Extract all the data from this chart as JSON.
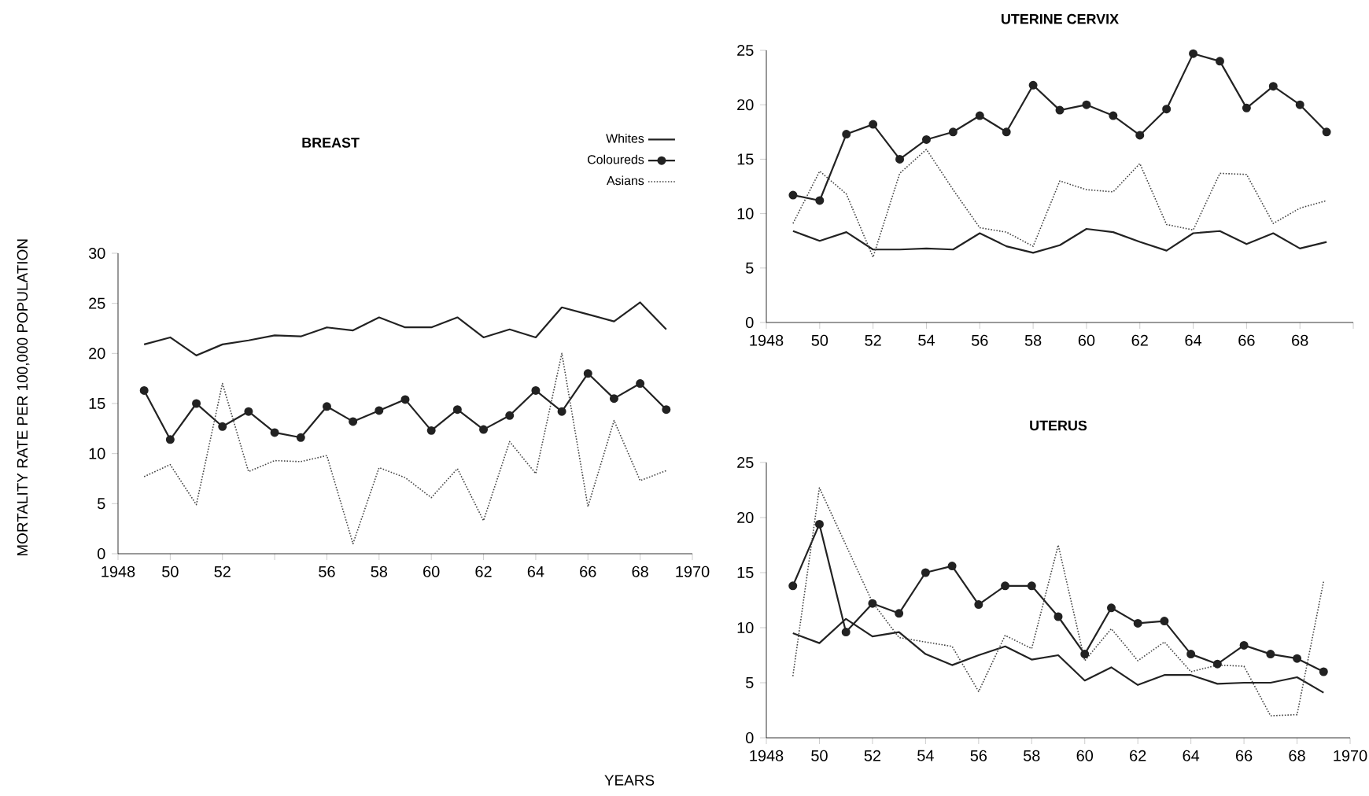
{
  "chart_data": [
    {
      "type": "line",
      "title": "BREAST",
      "ylabel": "MORTALITY RATE PER 100,000 POPULATION",
      "annotations": [
        "YEARS"
      ],
      "x": [
        1949,
        1950,
        1951,
        1952,
        1953,
        1954,
        1955,
        1956,
        1957,
        1958,
        1959,
        1960,
        1961,
        1962,
        1963,
        1964,
        1965,
        1966,
        1967,
        1968,
        1969
      ],
      "series": [
        {
          "name": "Whites",
          "color": "#222222",
          "line_style": "solid",
          "values": [
            20.9,
            21.6,
            19.8,
            20.9,
            21.3,
            21.8,
            21.7,
            22.6,
            22.3,
            23.6,
            22.6,
            22.6,
            23.6,
            21.6,
            22.4,
            21.6,
            24.6,
            23.9,
            23.2,
            25.1,
            22.4
          ]
        },
        {
          "name": "Coloureds",
          "color": "#222222",
          "line_style": "solid",
          "marker": "circle",
          "values": [
            16.3,
            11.4,
            15.0,
            12.7,
            14.2,
            12.1,
            11.6,
            14.7,
            13.2,
            14.3,
            15.4,
            12.3,
            14.4,
            12.4,
            13.8,
            16.3,
            14.2,
            18.0,
            15.5,
            17.0,
            14.4
          ]
        },
        {
          "name": "Asians",
          "color": "#444444",
          "line_style": "dotted",
          "values": [
            7.7,
            8.9,
            4.9,
            17.0,
            8.2,
            9.3,
            9.2,
            9.8,
            1.0,
            8.6,
            7.6,
            5.6,
            8.5,
            3.3,
            11.2,
            8.0,
            20.0,
            4.7,
            13.3,
            7.3,
            8.3
          ]
        }
      ],
      "xlim": [
        1948,
        1970
      ],
      "ylim": [
        0,
        30
      ],
      "xticks": [
        1948,
        {
          "value": 1950,
          "label": "50"
        },
        {
          "value": 1952,
          "label": "52"
        },
        {
          "value": 1954,
          "label": null
        },
        {
          "value": 1956,
          "label": "56"
        },
        {
          "value": 1958,
          "label": "58"
        },
        {
          "value": 1960,
          "label": "60"
        },
        {
          "value": 1962,
          "label": "62"
        },
        {
          "value": 1964,
          "label": "64"
        },
        {
          "value": 1966,
          "label": "66"
        },
        {
          "value": 1968,
          "label": "68"
        },
        1970
      ],
      "yticks": [
        0,
        5,
        10,
        15,
        20,
        25,
        30
      ],
      "legend": "top right"
    },
    {
      "type": "line",
      "title": "UTERINE CERVIX",
      "x": [
        1949,
        1950,
        1951,
        1952,
        1953,
        1954,
        1955,
        1956,
        1957,
        1958,
        1959,
        1960,
        1961,
        1962,
        1963,
        1964,
        1965,
        1966,
        1967,
        1968,
        1969
      ],
      "series": [
        {
          "color": "#222222",
          "line_style": "solid",
          "values": [
            8.4,
            7.5,
            8.3,
            6.7,
            6.7,
            6.8,
            6.7,
            8.2,
            7.0,
            6.4,
            7.1,
            8.6,
            8.3,
            7.4,
            6.6,
            8.2,
            8.4,
            7.2,
            8.2,
            6.8,
            7.4
          ]
        },
        {
          "color": "#222222",
          "line_style": "solid",
          "marker": "circle",
          "values": [
            11.7,
            11.2,
            17.3,
            18.2,
            15.0,
            16.8,
            17.5,
            19.0,
            17.5,
            21.8,
            19.5,
            20.0,
            19.0,
            17.2,
            19.6,
            24.7,
            24.0,
            19.7,
            21.7,
            20.0,
            17.5
          ]
        },
        {
          "color": "#444444",
          "line_style": "dotted",
          "values": [
            9.1,
            13.9,
            11.8,
            6.0,
            13.7,
            15.9,
            12.2,
            8.7,
            8.3,
            7.0,
            13.0,
            12.2,
            12.0,
            14.6,
            9.0,
            8.5,
            13.7,
            13.6,
            9.1,
            10.5,
            11.2
          ]
        }
      ],
      "xlim": [
        1948,
        1970
      ],
      "ylim": [
        0,
        25
      ],
      "xticks": [
        1948,
        {
          "value": 1950,
          "label": "50"
        },
        {
          "value": 1952,
          "label": "52"
        },
        {
          "value": 1954,
          "label": "54"
        },
        {
          "value": 1956,
          "label": "56"
        },
        {
          "value": 1958,
          "label": "58"
        },
        {
          "value": 1960,
          "label": "60"
        },
        {
          "value": 1962,
          "label": "62"
        },
        {
          "value": 1964,
          "label": "64"
        },
        {
          "value": 1966,
          "label": "66"
        },
        {
          "value": 1968,
          "label": "68"
        },
        {
          "value": 1970,
          "label": null
        }
      ],
      "yticks": [
        0,
        5,
        10,
        15,
        20,
        25
      ]
    },
    {
      "type": "line",
      "title": "UTERUS",
      "x": [
        1949,
        1950,
        1951,
        1952,
        1953,
        1954,
        1955,
        1956,
        1957,
        1958,
        1959,
        1960,
        1961,
        1962,
        1963,
        1964,
        1965,
        1966,
        1967,
        1968,
        1969
      ],
      "series": [
        {
          "color": "#222222",
          "line_style": "solid",
          "values": [
            9.5,
            8.6,
            10.8,
            9.2,
            9.6,
            7.6,
            6.6,
            7.5,
            8.3,
            7.1,
            7.5,
            5.2,
            6.4,
            4.8,
            5.7,
            5.7,
            4.9,
            5.0,
            5.0,
            5.5,
            4.1
          ]
        },
        {
          "color": "#222222",
          "line_style": "solid",
          "marker": "circle",
          "values": [
            13.8,
            19.4,
            9.6,
            12.2,
            11.3,
            15.0,
            15.6,
            12.1,
            13.8,
            13.8,
            11.0,
            7.6,
            11.8,
            10.4,
            10.6,
            7.6,
            6.7,
            8.4,
            7.6,
            7.2,
            6.0
          ]
        },
        {
          "color": "#444444",
          "line_style": "dotted",
          "values": [
            5.6,
            22.7,
            17.5,
            12.3,
            9.1,
            8.7,
            8.3,
            4.2,
            9.3,
            8.1,
            17.5,
            7.0,
            9.9,
            7.0,
            8.7,
            6.0,
            6.6,
            6.5,
            2.0,
            2.1,
            14.2
          ]
        }
      ],
      "xlim": [
        1948,
        1970
      ],
      "ylim": [
        0,
        25
      ],
      "xticks": [
        1948,
        {
          "value": 1950,
          "label": "50"
        },
        {
          "value": 1952,
          "label": "52"
        },
        {
          "value": 1954,
          "label": "54"
        },
        {
          "value": 1956,
          "label": "56"
        },
        {
          "value": 1958,
          "label": "58"
        },
        {
          "value": 1960,
          "label": "60"
        },
        {
          "value": 1962,
          "label": "62"
        },
        {
          "value": 1964,
          "label": "64"
        },
        {
          "value": 1966,
          "label": "66"
        },
        {
          "value": 1968,
          "label": "68"
        },
        1970
      ],
      "yticks": [
        0,
        5,
        10,
        15,
        20,
        25
      ]
    }
  ]
}
